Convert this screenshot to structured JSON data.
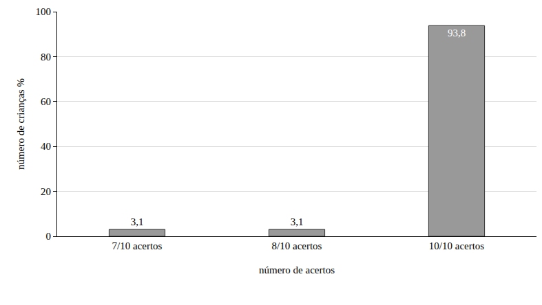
{
  "chart_data": {
    "type": "bar",
    "categories": [
      "7/10 acertos",
      "8/10 acertos",
      "10/10 acertos"
    ],
    "values": [
      3.1,
      3.1,
      93.8
    ],
    "value_labels": [
      "3,1",
      "3,1",
      "93,8"
    ],
    "data_labels": true,
    "color": "#999999",
    "xlabel": "número de acertos",
    "ylabel": "número de crianças %",
    "ylim": [
      0,
      100
    ],
    "yticks": [
      0,
      20,
      40,
      60,
      80,
      100
    ],
    "grid": true
  }
}
